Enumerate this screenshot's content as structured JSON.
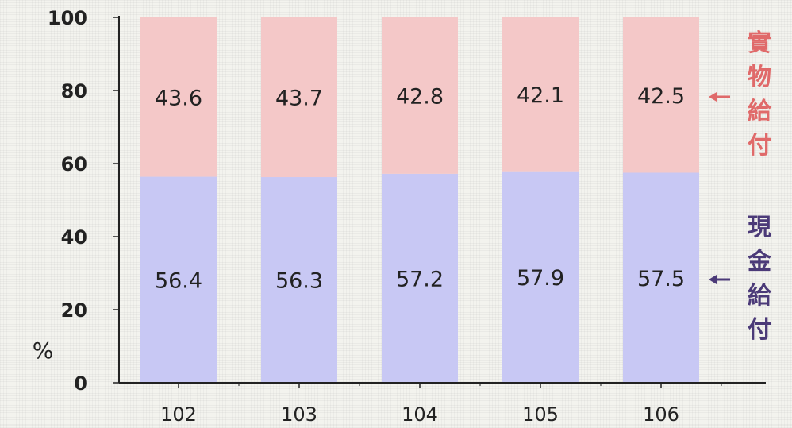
{
  "chart_data": {
    "type": "bar",
    "stacked": true,
    "percent_symbol": "%",
    "categories": [
      "102",
      "103",
      "104",
      "105",
      "106"
    ],
    "ylim": [
      0,
      100
    ],
    "yticks": [
      0,
      20,
      40,
      60,
      80,
      100
    ],
    "grid": false,
    "series": [
      {
        "name": "現金給付",
        "values": [
          56.4,
          56.3,
          57.2,
          57.9,
          57.5
        ],
        "labels": [
          "56.4",
          "56.3",
          "57.2",
          "57.9",
          "57.5"
        ],
        "color": "#c8c8f4",
        "label_color": "#4b3a78"
      },
      {
        "name": "實物給付",
        "values": [
          43.6,
          43.7,
          42.8,
          42.1,
          42.5
        ],
        "labels": [
          "43.6",
          "43.7",
          "42.8",
          "42.1",
          "42.5"
        ],
        "color": "#f4c8c8",
        "label_color": "#e06a6a"
      }
    ]
  }
}
